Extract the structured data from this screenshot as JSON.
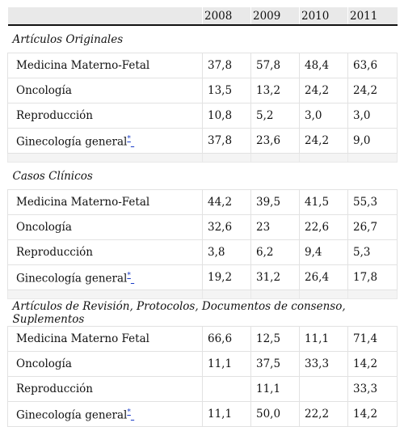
{
  "header": {
    "corner": "",
    "years": [
      "2008",
      "2009",
      "2010",
      "2011"
    ]
  },
  "sections": [
    {
      "title": "Artículos Originales",
      "rows": [
        {
          "label": "Medicina Materno-Fetal",
          "marker": "",
          "values": [
            "37,8",
            "57,8",
            "48,4",
            "63,6"
          ]
        },
        {
          "label": "Oncología",
          "marker": "",
          "values": [
            "13,5",
            "13,2",
            "24,2",
            "24,2"
          ]
        },
        {
          "label": "Reproducción",
          "marker": "",
          "values": [
            "10,8",
            "5,2",
            "3,0",
            "3,0"
          ]
        },
        {
          "label": "Ginecología general",
          "marker": "*",
          "values": [
            "37,8",
            "23,6",
            "24,2",
            "9,0"
          ]
        }
      ]
    },
    {
      "title": "Casos Clínicos",
      "rows": [
        {
          "label": "Medicina Materno-Fetal",
          "marker": "",
          "values": [
            "44,2",
            "39,5",
            "41,5",
            "55,3"
          ]
        },
        {
          "label": "Oncología",
          "marker": "",
          "values": [
            "32,6",
            "23",
            "22,6",
            "26,7"
          ]
        },
        {
          "label": "Reproducción",
          "marker": "",
          "values": [
            "3,8",
            "6,2",
            "9,4",
            "5,3"
          ]
        },
        {
          "label": "Ginecología general",
          "marker": "*",
          "values": [
            "19,2",
            "31,2",
            "26,4",
            "17,8"
          ]
        }
      ]
    },
    {
      "title": "Artículos de Revisión, Protocolos, Documentos de consenso, Suplementos",
      "rows": [
        {
          "label": "Medicina Materno Fetal",
          "marker": "",
          "values": [
            "66,6",
            "12,5",
            "11,1",
            "71,4"
          ]
        },
        {
          "label": "Oncología",
          "marker": "",
          "values": [
            "11,1",
            "37,5",
            "33,3",
            "14,2"
          ]
        },
        {
          "label": "Reproducción",
          "marker": "",
          "values": [
            "",
            "11,1",
            "",
            "33,3"
          ]
        },
        {
          "label": "Ginecología general",
          "marker": "*",
          "values": [
            "11,1",
            "50,0",
            "22,2",
            "14,2"
          ]
        }
      ]
    }
  ],
  "colors": {
    "header_bg": "#e9e9e9",
    "link": "#1a3cc8",
    "gap_bg": "#f4f4f4"
  }
}
